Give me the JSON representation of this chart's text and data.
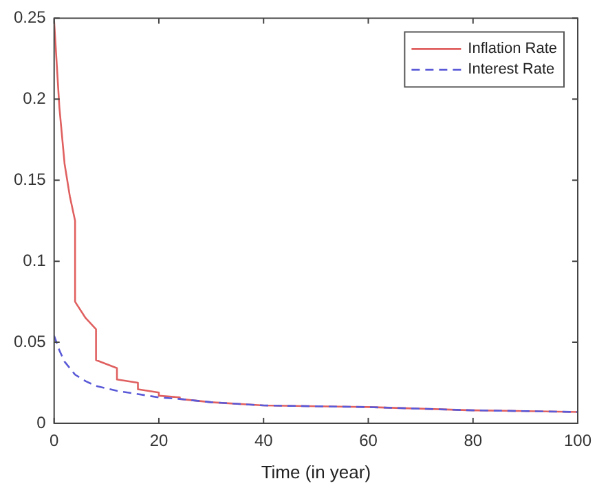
{
  "chart_data": {
    "type": "line",
    "xlabel": "Time (in year)",
    "xlim": [
      0,
      100
    ],
    "xticks": [
      0,
      20,
      40,
      60,
      80,
      100
    ],
    "ylim": [
      0,
      0.25
    ],
    "yticks": [
      0,
      0.05,
      0.1,
      0.15,
      0.2,
      0.25
    ],
    "grid": false,
    "legend": "top right",
    "marker": "none",
    "series": [
      {
        "name": "Inflation Rate",
        "color": "#e06060",
        "line_style": "solid",
        "x": [
          0,
          1,
          2,
          3,
          4,
          4,
          6,
          8,
          8,
          12,
          12,
          16,
          16,
          20,
          20,
          24,
          24,
          30,
          40,
          60,
          80,
          100
        ],
        "values": [
          0.248,
          0.195,
          0.16,
          0.14,
          0.125,
          0.075,
          0.065,
          0.058,
          0.039,
          0.034,
          0.027,
          0.025,
          0.021,
          0.019,
          0.017,
          0.016,
          0.015,
          0.013,
          0.011,
          0.01,
          0.008,
          0.007
        ]
      },
      {
        "name": "Interest Rate",
        "color": "#5a5ad8",
        "line_style": "dashed",
        "x": [
          0,
          1,
          2,
          4,
          6,
          8,
          12,
          16,
          20,
          24,
          30,
          40,
          60,
          80,
          100
        ],
        "values": [
          0.054,
          0.045,
          0.038,
          0.03,
          0.026,
          0.023,
          0.02,
          0.018,
          0.016,
          0.015,
          0.013,
          0.011,
          0.01,
          0.008,
          0.007
        ]
      }
    ]
  }
}
